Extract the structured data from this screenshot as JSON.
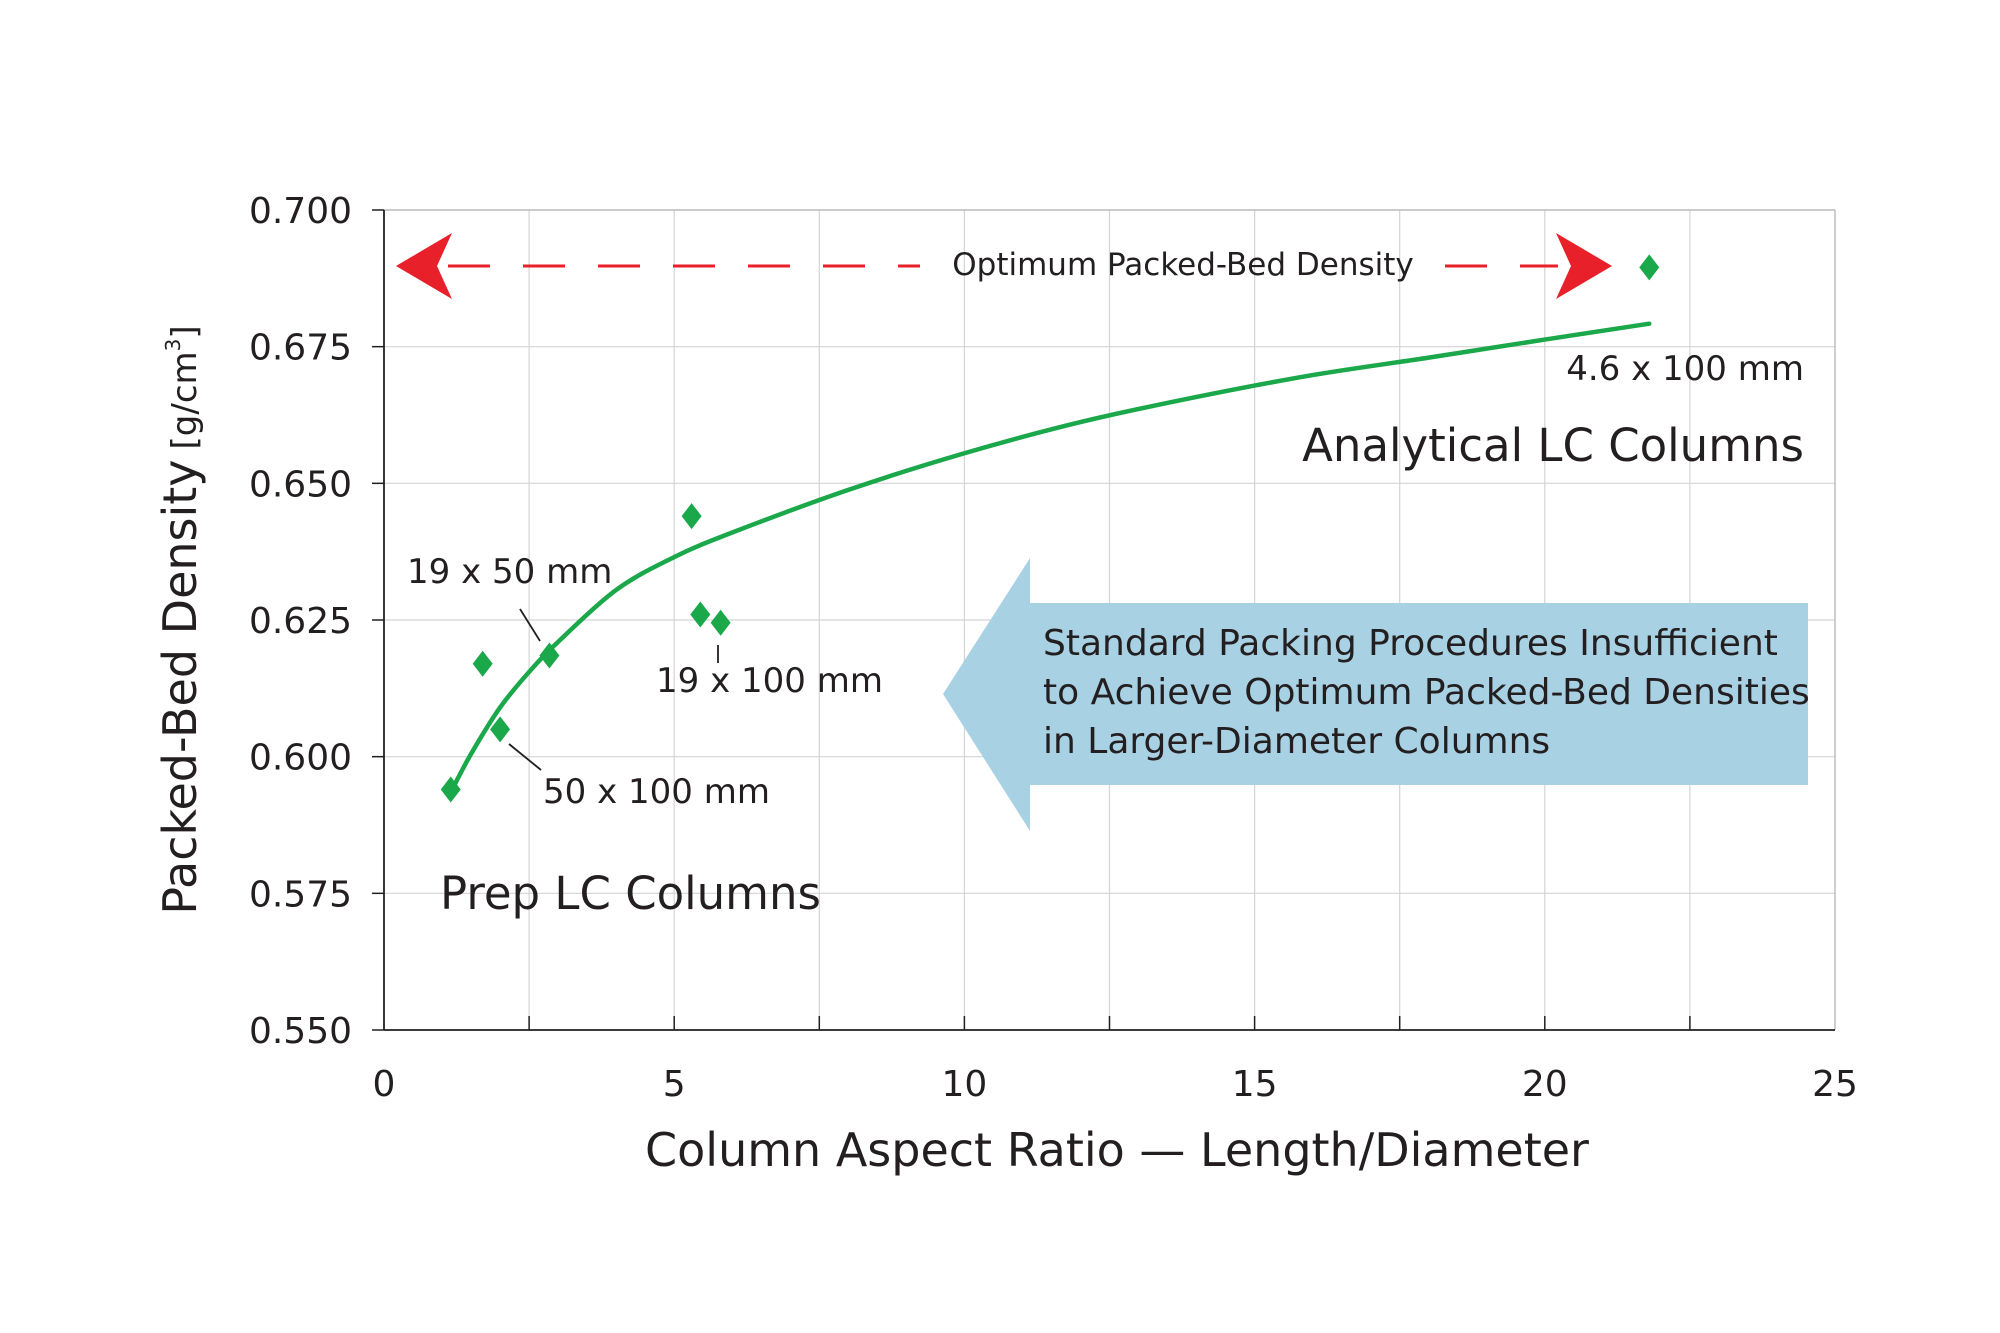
{
  "chart_data": {
    "type": "scatter",
    "xlabel": "Column Aspect Ratio — Length/Diameter",
    "ylabel": "Packed-Bed Density",
    "ylabel_unit_base": "[g/cm",
    "ylabel_unit_exp": "3",
    "ylabel_unit_close": "]",
    "xlim": [
      0,
      25
    ],
    "ylim": [
      0.55,
      0.7
    ],
    "x_ticks": [
      0,
      5,
      10,
      15,
      20,
      25
    ],
    "x_tick_labels": [
      "0",
      "5",
      "10",
      "15",
      "20",
      "25"
    ],
    "y_ticks": [
      0.55,
      0.575,
      0.6,
      0.625,
      0.65,
      0.675,
      0.7
    ],
    "y_tick_labels": [
      "0.550",
      "0.575",
      "0.600",
      "0.625",
      "0.650",
      "0.675",
      "0.700"
    ],
    "grid": true,
    "series": [
      {
        "marker": "diamond",
        "color": "#1aa84a",
        "points": [
          {
            "x": 1.15,
            "y": 0.594
          },
          {
            "x": 1.7,
            "y": 0.617
          },
          {
            "x": 2.0,
            "y": 0.605
          },
          {
            "x": 2.85,
            "y": 0.6185
          },
          {
            "x": 5.3,
            "y": 0.644
          },
          {
            "x": 5.45,
            "y": 0.626
          },
          {
            "x": 5.8,
            "y": 0.6245
          },
          {
            "x": 21.8,
            "y": 0.6895
          }
        ]
      }
    ],
    "trendline": {
      "color": "#1aa84a",
      "x": [
        1.15,
        1.5,
        2.0,
        2.5,
        3.0,
        4.0,
        5.0,
        6.0,
        8.0,
        10.0,
        12.0,
        14.0,
        16.0,
        18.0,
        20.0,
        21.8
      ],
      "y": [
        0.5935,
        0.6005,
        0.609,
        0.6155,
        0.621,
        0.6305,
        0.6365,
        0.641,
        0.6488,
        0.6555,
        0.6612,
        0.6658,
        0.6698,
        0.673,
        0.6763,
        0.6792
      ]
    },
    "optimum_line": {
      "label": "Optimum Packed-Bed Density",
      "y": 0.6895,
      "color": "#e8202a"
    },
    "annotations": [
      {
        "id": "ann-19x50",
        "text": "19 x 50 mm"
      },
      {
        "id": "ann-50x100",
        "text": "50 x 100 mm"
      },
      {
        "id": "ann-19x100",
        "text": "19 x 100 mm"
      },
      {
        "id": "ann-4.6x100",
        "text": "4.6 x 100 mm"
      },
      {
        "id": "ann-analytical",
        "text": "Analytical LC Columns"
      },
      {
        "id": "ann-prep",
        "text": "Prep LC Columns"
      }
    ],
    "callout": {
      "color": "#a9d1e4",
      "lines": [
        "Standard Packing Procedures Insufficient",
        "to Achieve Optimum Packed-Bed Densities",
        "in Larger-Diameter Columns"
      ]
    }
  }
}
